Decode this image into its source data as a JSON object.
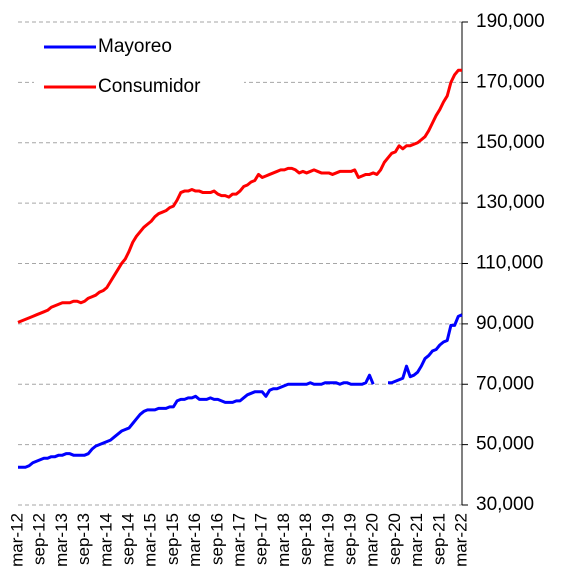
{
  "chart_data": {
    "type": "line",
    "categories": [
      "mar-12",
      null,
      null,
      null,
      null,
      null,
      "sep-12",
      null,
      null,
      null,
      null,
      null,
      "mar-13",
      null,
      null,
      null,
      null,
      null,
      "sep-13",
      null,
      null,
      null,
      null,
      null,
      "mar-14",
      null,
      null,
      null,
      null,
      null,
      "sep-14",
      null,
      null,
      null,
      null,
      null,
      "mar-15",
      null,
      null,
      null,
      null,
      null,
      "sep-15",
      null,
      null,
      null,
      null,
      null,
      "mar-16",
      null,
      null,
      null,
      null,
      null,
      "sep-16",
      null,
      null,
      null,
      null,
      null,
      "mar-17",
      null,
      null,
      null,
      null,
      null,
      "sep-17",
      null,
      null,
      null,
      null,
      null,
      "mar-18",
      null,
      null,
      null,
      null,
      null,
      "sep-18",
      null,
      null,
      null,
      null,
      null,
      "mar-19",
      null,
      null,
      null,
      null,
      null,
      "sep-19",
      null,
      null,
      null,
      null,
      null,
      "mar-20",
      null,
      null,
      null,
      null,
      null,
      "sep-20",
      null,
      null,
      null,
      null,
      null,
      "mar-21",
      null,
      null,
      null,
      null,
      null,
      "sep-21",
      null,
      null,
      null,
      null,
      null,
      "mar-22"
    ],
    "series": [
      {
        "name": "Mayoreo",
        "color": "#0000ff",
        "values": [
          42500,
          42500,
          42500,
          43000,
          44000,
          44500,
          45000,
          45500,
          45500,
          46000,
          46000,
          46500,
          46500,
          47000,
          47000,
          46500,
          46500,
          46500,
          46500,
          47000,
          48500,
          49500,
          50000,
          50500,
          51000,
          51500,
          52500,
          53500,
          54500,
          55000,
          55500,
          57000,
          58500,
          60000,
          61000,
          61500,
          61500,
          61500,
          62000,
          62000,
          62000,
          62500,
          62500,
          64500,
          65000,
          65000,
          65500,
          65500,
          66000,
          65000,
          65000,
          65000,
          65500,
          65000,
          65000,
          64500,
          64000,
          64000,
          64000,
          64500,
          64500,
          65500,
          66500,
          67000,
          67500,
          67500,
          67500,
          66000,
          68000,
          68500,
          68500,
          69000,
          69500,
          70000,
          70000,
          70000,
          70000,
          70000,
          70000,
          70500,
          70000,
          70000,
          70000,
          70500,
          70500,
          70500,
          70500,
          70000,
          70500,
          70500,
          70000,
          70000,
          70000,
          70000,
          70500,
          73000,
          70000,
          null,
          null,
          null,
          70500,
          70500,
          71000,
          71500,
          72000,
          76000,
          72500,
          73000,
          74000,
          76000,
          78500,
          79500,
          81000,
          81500,
          83000,
          84000,
          84500,
          89500,
          89500,
          92500,
          93000
        ]
      },
      {
        "name": "Consumidor",
        "color": "#ff0000",
        "values": [
          90500,
          91000,
          91500,
          92000,
          92500,
          93000,
          93500,
          94000,
          94500,
          95500,
          96000,
          96500,
          97000,
          97000,
          97000,
          97500,
          97500,
          97000,
          97500,
          98500,
          99000,
          99500,
          100500,
          101000,
          102000,
          104000,
          106000,
          108000,
          110000,
          111500,
          114000,
          117000,
          119000,
          120500,
          122000,
          123000,
          124000,
          125500,
          126500,
          127000,
          127500,
          128500,
          129000,
          131000,
          133500,
          134000,
          134000,
          134500,
          134000,
          134000,
          133500,
          133500,
          133500,
          134000,
          133000,
          132500,
          132500,
          132000,
          133000,
          133000,
          134000,
          135500,
          136000,
          137000,
          137500,
          139500,
          138500,
          139000,
          139500,
          140000,
          140500,
          141000,
          141000,
          141500,
          141500,
          141000,
          140000,
          140500,
          140000,
          140500,
          141000,
          140500,
          140000,
          140000,
          140000,
          139500,
          140000,
          140500,
          140500,
          140500,
          140500,
          141000,
          138500,
          139000,
          139500,
          139500,
          140000,
          139500,
          141000,
          143500,
          145000,
          146500,
          147000,
          149000,
          148000,
          149000,
          149000,
          149500,
          150000,
          151000,
          152000,
          154000,
          156500,
          159000,
          161000,
          163500,
          165500,
          170000,
          172500,
          174000,
          174000
        ]
      }
    ],
    "ylim": [
      30000,
      190000
    ],
    "yticks": [
      {
        "value": 30000,
        "label": "30,000"
      },
      {
        "value": 50000,
        "label": "50,000"
      },
      {
        "value": 70000,
        "label": "70,000"
      },
      {
        "value": 90000,
        "label": "90,000"
      },
      {
        "value": 110000,
        "label": "110,000"
      },
      {
        "value": 130000,
        "label": "130,000"
      },
      {
        "value": 150000,
        "label": "150,000"
      },
      {
        "value": 170000,
        "label": "170,000"
      },
      {
        "value": 190000,
        "label": "190,000"
      }
    ],
    "grid": true,
    "legend": "upper left",
    "y_axis_side": "right"
  }
}
